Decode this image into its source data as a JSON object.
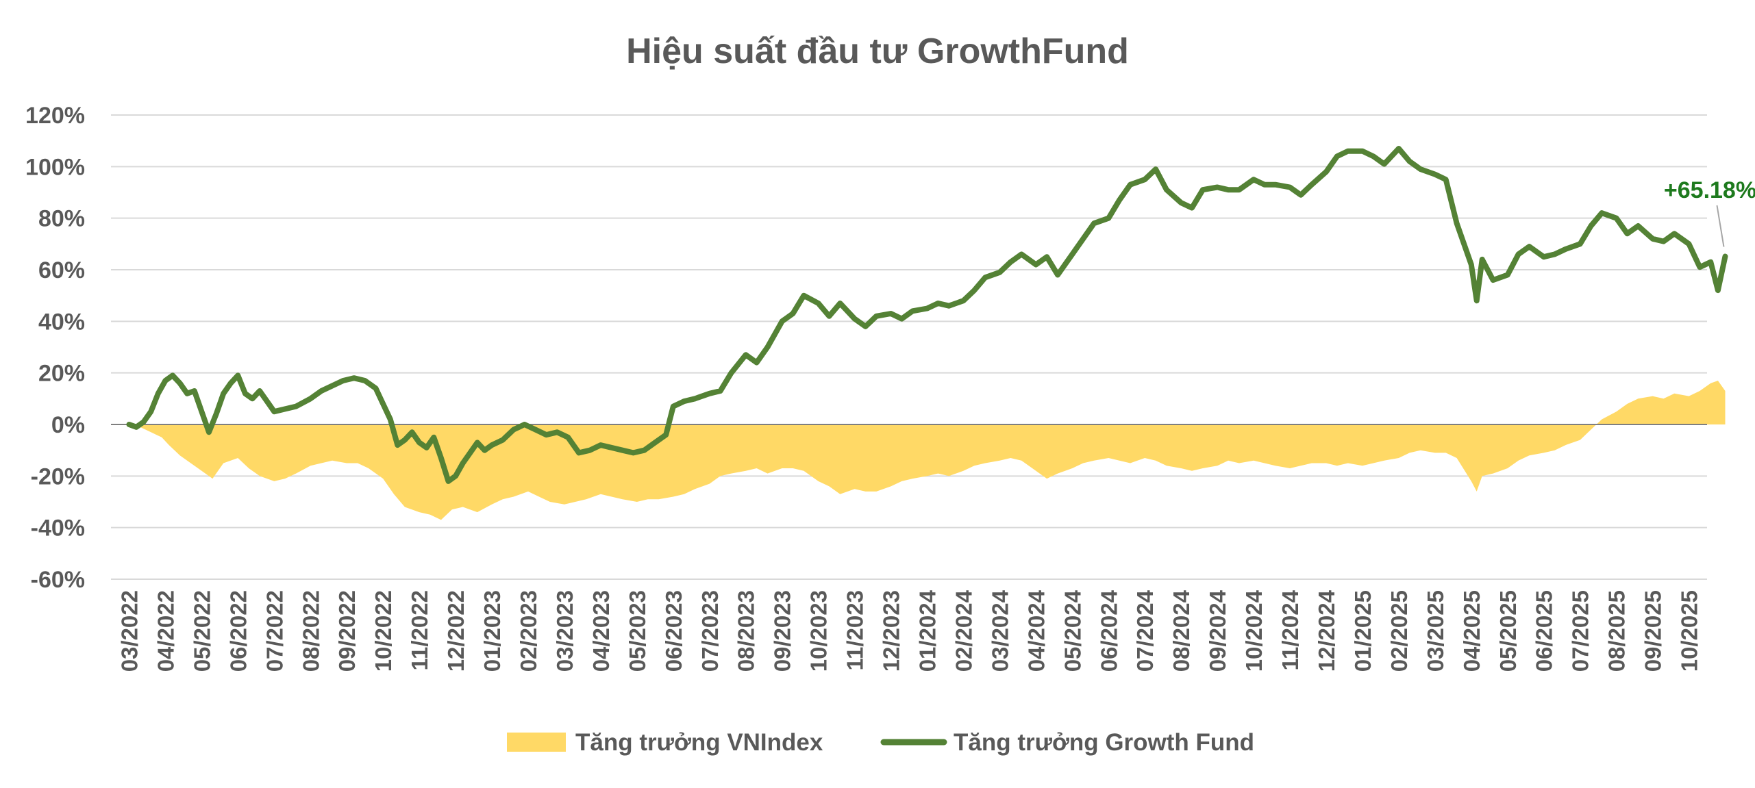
{
  "chart_data": {
    "type": "area+line",
    "title": "Hiệu suất đầu tư GrowthFund",
    "xlabel": "",
    "ylabel": "",
    "y_unit": "%",
    "ylim": [
      -60,
      120
    ],
    "yticks": [
      "120%",
      "100%",
      "80%",
      "60%",
      "40%",
      "20%",
      "0%",
      "-20%",
      "-40%",
      "-60%"
    ],
    "grid": true,
    "legend_position": "bottom",
    "x_labels": [
      "03/2022",
      "04/2022",
      "05/2022",
      "06/2022",
      "07/2022",
      "08/2022",
      "09/2022",
      "10/2022",
      "11/2022",
      "12/2022",
      "01/2023",
      "02/2023",
      "03/2023",
      "04/2023",
      "05/2023",
      "06/2023",
      "07/2023",
      "08/2023",
      "09/2023",
      "10/2023",
      "11/2023",
      "12/2023",
      "01/2024",
      "02/2024",
      "03/2024",
      "04/2024",
      "05/2024",
      "06/2024",
      "07/2024",
      "08/2024",
      "09/2024",
      "10/2024",
      "11/2024",
      "12/2024",
      "01/2025",
      "02/2025",
      "03/2025",
      "04/2025",
      "05/2025",
      "06/2025",
      "07/2025",
      "08/2025",
      "09/2025",
      "10/2025"
    ],
    "series": [
      {
        "name": "Tăng trưởng VNIndex",
        "kind": "area",
        "color": "#FFD966",
        "points": [
          [
            0,
            0
          ],
          [
            0.3,
            -1
          ],
          [
            0.6,
            -3
          ],
          [
            0.9,
            -5
          ],
          [
            1.1,
            -8
          ],
          [
            1.4,
            -12
          ],
          [
            1.7,
            -15
          ],
          [
            2.0,
            -18
          ],
          [
            2.3,
            -21
          ],
          [
            2.6,
            -15
          ],
          [
            3.0,
            -13
          ],
          [
            3.3,
            -17
          ],
          [
            3.6,
            -20
          ],
          [
            4.0,
            -22
          ],
          [
            4.3,
            -21
          ],
          [
            4.6,
            -19
          ],
          [
            5.0,
            -16
          ],
          [
            5.3,
            -15
          ],
          [
            5.6,
            -14
          ],
          [
            6.0,
            -15
          ],
          [
            6.3,
            -15
          ],
          [
            6.6,
            -17
          ],
          [
            7.0,
            -21
          ],
          [
            7.3,
            -27
          ],
          [
            7.6,
            -32
          ],
          [
            8.0,
            -34
          ],
          [
            8.3,
            -35
          ],
          [
            8.6,
            -37
          ],
          [
            8.9,
            -33
          ],
          [
            9.2,
            -32
          ],
          [
            9.6,
            -34
          ],
          [
            10.0,
            -31
          ],
          [
            10.3,
            -29
          ],
          [
            10.6,
            -28
          ],
          [
            11.0,
            -26
          ],
          [
            11.3,
            -28
          ],
          [
            11.6,
            -30
          ],
          [
            12.0,
            -31
          ],
          [
            12.3,
            -30
          ],
          [
            12.6,
            -29
          ],
          [
            13.0,
            -27
          ],
          [
            13.3,
            -28
          ],
          [
            13.6,
            -29
          ],
          [
            14.0,
            -30
          ],
          [
            14.3,
            -29
          ],
          [
            14.6,
            -29
          ],
          [
            15.0,
            -28
          ],
          [
            15.3,
            -27
          ],
          [
            15.6,
            -25
          ],
          [
            16.0,
            -23
          ],
          [
            16.3,
            -20
          ],
          [
            16.6,
            -19
          ],
          [
            17.0,
            -18
          ],
          [
            17.3,
            -17
          ],
          [
            17.6,
            -19
          ],
          [
            18.0,
            -17
          ],
          [
            18.3,
            -17
          ],
          [
            18.6,
            -18
          ],
          [
            19.0,
            -22
          ],
          [
            19.3,
            -24
          ],
          [
            19.6,
            -27
          ],
          [
            20.0,
            -25
          ],
          [
            20.3,
            -26
          ],
          [
            20.6,
            -26
          ],
          [
            21.0,
            -24
          ],
          [
            21.3,
            -22
          ],
          [
            21.6,
            -21
          ],
          [
            22.0,
            -20
          ],
          [
            22.3,
            -19
          ],
          [
            22.6,
            -20
          ],
          [
            23.0,
            -18
          ],
          [
            23.3,
            -16
          ],
          [
            23.6,
            -15
          ],
          [
            24.0,
            -14
          ],
          [
            24.3,
            -13
          ],
          [
            24.6,
            -14
          ],
          [
            25.0,
            -18
          ],
          [
            25.3,
            -21
          ],
          [
            25.6,
            -19
          ],
          [
            26.0,
            -17
          ],
          [
            26.3,
            -15
          ],
          [
            26.6,
            -14
          ],
          [
            27.0,
            -13
          ],
          [
            27.3,
            -14
          ],
          [
            27.6,
            -15
          ],
          [
            28.0,
            -13
          ],
          [
            28.3,
            -14
          ],
          [
            28.6,
            -16
          ],
          [
            29.0,
            -17
          ],
          [
            29.3,
            -18
          ],
          [
            29.6,
            -17
          ],
          [
            30.0,
            -16
          ],
          [
            30.3,
            -14
          ],
          [
            30.6,
            -15
          ],
          [
            31.0,
            -14
          ],
          [
            31.3,
            -15
          ],
          [
            31.6,
            -16
          ],
          [
            32.0,
            -17
          ],
          [
            32.3,
            -16
          ],
          [
            32.6,
            -15
          ],
          [
            33.0,
            -15
          ],
          [
            33.3,
            -16
          ],
          [
            33.6,
            -15
          ],
          [
            34.0,
            -16
          ],
          [
            34.3,
            -15
          ],
          [
            34.6,
            -14
          ],
          [
            35.0,
            -13
          ],
          [
            35.3,
            -11
          ],
          [
            35.6,
            -10
          ],
          [
            36.0,
            -11
          ],
          [
            36.3,
            -11
          ],
          [
            36.6,
            -13
          ],
          [
            37.0,
            -22
          ],
          [
            37.15,
            -26
          ],
          [
            37.3,
            -20
          ],
          [
            37.6,
            -19
          ],
          [
            38.0,
            -17
          ],
          [
            38.3,
            -14
          ],
          [
            38.6,
            -12
          ],
          [
            39.0,
            -11
          ],
          [
            39.3,
            -10
          ],
          [
            39.6,
            -8
          ],
          [
            40.0,
            -6
          ],
          [
            40.3,
            -2
          ],
          [
            40.6,
            2
          ],
          [
            41.0,
            5
          ],
          [
            41.3,
            8
          ],
          [
            41.6,
            10
          ],
          [
            42.0,
            11
          ],
          [
            42.3,
            10
          ],
          [
            42.6,
            12
          ],
          [
            43.0,
            11
          ],
          [
            43.3,
            13
          ],
          [
            43.6,
            16
          ],
          [
            43.8,
            17
          ],
          [
            44.0,
            13
          ]
        ]
      },
      {
        "name": "Tăng trưởng Growth Fund",
        "kind": "line",
        "color": "#548235",
        "points": [
          [
            0,
            0
          ],
          [
            0.2,
            -1
          ],
          [
            0.4,
            1
          ],
          [
            0.6,
            5
          ],
          [
            0.8,
            12
          ],
          [
            1.0,
            17
          ],
          [
            1.2,
            19
          ],
          [
            1.4,
            16
          ],
          [
            1.6,
            12
          ],
          [
            1.8,
            13
          ],
          [
            2.0,
            5
          ],
          [
            2.2,
            -3
          ],
          [
            2.4,
            4
          ],
          [
            2.6,
            12
          ],
          [
            2.8,
            16
          ],
          [
            3.0,
            19
          ],
          [
            3.2,
            12
          ],
          [
            3.4,
            10
          ],
          [
            3.6,
            13
          ],
          [
            3.8,
            9
          ],
          [
            4.0,
            5
          ],
          [
            4.3,
            6
          ],
          [
            4.6,
            7
          ],
          [
            5.0,
            10
          ],
          [
            5.3,
            13
          ],
          [
            5.6,
            15
          ],
          [
            5.9,
            17
          ],
          [
            6.2,
            18
          ],
          [
            6.5,
            17
          ],
          [
            6.8,
            14
          ],
          [
            7.0,
            8
          ],
          [
            7.2,
            2
          ],
          [
            7.4,
            -8
          ],
          [
            7.6,
            -6
          ],
          [
            7.8,
            -3
          ],
          [
            8.0,
            -7
          ],
          [
            8.2,
            -9
          ],
          [
            8.4,
            -5
          ],
          [
            8.6,
            -13
          ],
          [
            8.8,
            -22
          ],
          [
            9.0,
            -20
          ],
          [
            9.2,
            -15
          ],
          [
            9.4,
            -11
          ],
          [
            9.6,
            -7
          ],
          [
            9.8,
            -10
          ],
          [
            10.0,
            -8
          ],
          [
            10.3,
            -6
          ],
          [
            10.6,
            -2
          ],
          [
            10.9,
            0
          ],
          [
            11.2,
            -2
          ],
          [
            11.5,
            -4
          ],
          [
            11.8,
            -3
          ],
          [
            12.1,
            -5
          ],
          [
            12.4,
            -11
          ],
          [
            12.7,
            -10
          ],
          [
            13.0,
            -8
          ],
          [
            13.3,
            -9
          ],
          [
            13.6,
            -10
          ],
          [
            13.9,
            -11
          ],
          [
            14.2,
            -10
          ],
          [
            14.5,
            -7
          ],
          [
            14.8,
            -4
          ],
          [
            15.0,
            7
          ],
          [
            15.3,
            9
          ],
          [
            15.6,
            10
          ],
          [
            16.0,
            12
          ],
          [
            16.3,
            13
          ],
          [
            16.6,
            20
          ],
          [
            17.0,
            27
          ],
          [
            17.3,
            24
          ],
          [
            17.6,
            30
          ],
          [
            18.0,
            40
          ],
          [
            18.3,
            43
          ],
          [
            18.6,
            50
          ],
          [
            19.0,
            47
          ],
          [
            19.3,
            42
          ],
          [
            19.6,
            47
          ],
          [
            20.0,
            41
          ],
          [
            20.3,
            38
          ],
          [
            20.6,
            42
          ],
          [
            21.0,
            43
          ],
          [
            21.3,
            41
          ],
          [
            21.6,
            44
          ],
          [
            22.0,
            45
          ],
          [
            22.3,
            47
          ],
          [
            22.6,
            46
          ],
          [
            23.0,
            48
          ],
          [
            23.3,
            52
          ],
          [
            23.6,
            57
          ],
          [
            24.0,
            59
          ],
          [
            24.3,
            63
          ],
          [
            24.6,
            66
          ],
          [
            25.0,
            62
          ],
          [
            25.3,
            65
          ],
          [
            25.6,
            58
          ],
          [
            26.0,
            66
          ],
          [
            26.3,
            72
          ],
          [
            26.6,
            78
          ],
          [
            27.0,
            80
          ],
          [
            27.3,
            87
          ],
          [
            27.6,
            93
          ],
          [
            28.0,
            95
          ],
          [
            28.3,
            99
          ],
          [
            28.6,
            91
          ],
          [
            29.0,
            86
          ],
          [
            29.3,
            84
          ],
          [
            29.6,
            91
          ],
          [
            30.0,
            92
          ],
          [
            30.3,
            91
          ],
          [
            30.6,
            91
          ],
          [
            31.0,
            95
          ],
          [
            31.3,
            93
          ],
          [
            31.6,
            93
          ],
          [
            32.0,
            92
          ],
          [
            32.3,
            89
          ],
          [
            32.6,
            93
          ],
          [
            33.0,
            98
          ],
          [
            33.3,
            104
          ],
          [
            33.6,
            106
          ],
          [
            34.0,
            106
          ],
          [
            34.3,
            104
          ],
          [
            34.6,
            101
          ],
          [
            35.0,
            107
          ],
          [
            35.3,
            102
          ],
          [
            35.6,
            99
          ],
          [
            36.0,
            97
          ],
          [
            36.3,
            95
          ],
          [
            36.6,
            78
          ],
          [
            37.0,
            62
          ],
          [
            37.15,
            48
          ],
          [
            37.3,
            64
          ],
          [
            37.6,
            56
          ],
          [
            38.0,
            58
          ],
          [
            38.3,
            66
          ],
          [
            38.6,
            69
          ],
          [
            39.0,
            65
          ],
          [
            39.3,
            66
          ],
          [
            39.6,
            68
          ],
          [
            40.0,
            70
          ],
          [
            40.3,
            77
          ],
          [
            40.6,
            82
          ],
          [
            41.0,
            80
          ],
          [
            41.3,
            74
          ],
          [
            41.6,
            77
          ],
          [
            42.0,
            72
          ],
          [
            42.3,
            71
          ],
          [
            42.6,
            74
          ],
          [
            43.0,
            70
          ],
          [
            43.3,
            61
          ],
          [
            43.6,
            63
          ],
          [
            43.8,
            52
          ],
          [
            44.0,
            65.18
          ]
        ]
      }
    ],
    "annotation": {
      "text": "+65.18%",
      "x": 44.0,
      "y": 65.18
    }
  },
  "legend": {
    "items": [
      {
        "label": "Tăng trưởng VNIndex",
        "color": "#FFD966",
        "kind": "area"
      },
      {
        "label": "Tăng trưởng Growth Fund",
        "color": "#548235",
        "kind": "line"
      }
    ]
  }
}
